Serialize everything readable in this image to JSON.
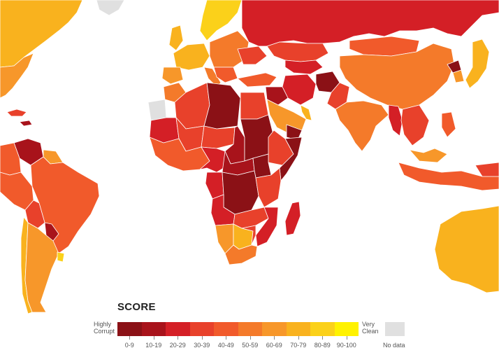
{
  "map": {
    "colors": {
      "ocean": "#ffffff",
      "border": "#ffffff",
      "nodata": "#e0e0e0"
    }
  },
  "legend": {
    "title": "SCORE",
    "left_label": [
      "Highly",
      "Corrupt"
    ],
    "right_label": [
      "Very",
      "Clean"
    ],
    "no_data_label": "No data",
    "ranges": [
      {
        "label": "0-9",
        "color": "#8b1116"
      },
      {
        "label": "10-19",
        "color": "#a8131b"
      },
      {
        "label": "20-29",
        "color": "#d41f26"
      },
      {
        "label": "30-39",
        "color": "#e8412b"
      },
      {
        "label": "40-49",
        "color": "#f15a2b"
      },
      {
        "label": "50-59",
        "color": "#f47a2a"
      },
      {
        "label": "60-69",
        "color": "#f7972a"
      },
      {
        "label": "70-79",
        "color": "#f9b21e"
      },
      {
        "label": "80-89",
        "color": "#fbd11a"
      },
      {
        "label": "90-100",
        "color": "#fff200"
      }
    ]
  }
}
